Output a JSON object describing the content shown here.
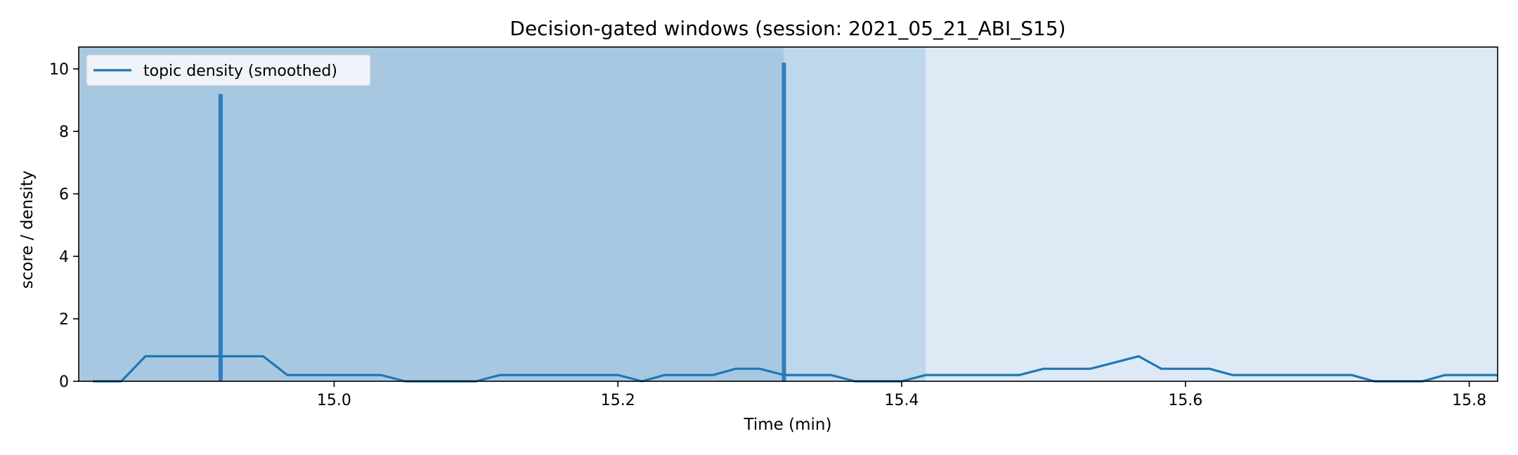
{
  "chart_data": {
    "type": "line",
    "title": "Decision-gated windows (session: 2021_05_21_ABI_S15)",
    "xlabel": "Time (min)",
    "ylabel": "score / density",
    "xlim": [
      14.82,
      15.82
    ],
    "ylim": [
      0,
      10.7
    ],
    "xticks": [
      15.0,
      15.2,
      15.4,
      15.6,
      15.8
    ],
    "xtick_labels": [
      "15.0",
      "15.2",
      "15.4",
      "15.6",
      "15.8"
    ],
    "yticks": [
      0,
      2,
      4,
      6,
      8,
      10
    ],
    "ytick_labels": [
      "0",
      "2",
      "4",
      "6",
      "8",
      "10"
    ],
    "grid": false,
    "legend_position": "top-left",
    "colors": {
      "line": "#1f77b4",
      "spike": "#2e7fbf",
      "window_dark": "#a8c8e2",
      "window_mid": "#bed7eb",
      "window_light": "#dde9f4"
    },
    "windows": [
      {
        "x0": 14.82,
        "x1": 15.317,
        "shade": "dark"
      },
      {
        "x0": 15.317,
        "x1": 15.417,
        "shade": "mid"
      },
      {
        "x0": 15.417,
        "x1": 15.82,
        "shade": "light"
      }
    ],
    "spikes": [
      {
        "x": 14.92,
        "y": 9.2
      },
      {
        "x": 15.317,
        "y": 10.2
      }
    ],
    "series": [
      {
        "name": "topic density (smoothed)",
        "x": [
          14.83,
          14.85,
          14.867,
          14.883,
          14.9,
          14.917,
          14.933,
          14.95,
          14.967,
          14.983,
          15.0,
          15.017,
          15.033,
          15.05,
          15.067,
          15.083,
          15.1,
          15.117,
          15.133,
          15.15,
          15.167,
          15.183,
          15.2,
          15.217,
          15.233,
          15.25,
          15.267,
          15.283,
          15.3,
          15.317,
          15.333,
          15.35,
          15.367,
          15.383,
          15.4,
          15.417,
          15.433,
          15.45,
          15.467,
          15.483,
          15.5,
          15.517,
          15.533,
          15.55,
          15.567,
          15.583,
          15.6,
          15.617,
          15.633,
          15.65,
          15.667,
          15.683,
          15.7,
          15.717,
          15.733,
          15.75,
          15.767,
          15.783,
          15.8,
          15.82
        ],
        "y": [
          0,
          0,
          0.8,
          0.8,
          0.8,
          0.8,
          0.8,
          0.8,
          0.2,
          0.2,
          0.2,
          0.2,
          0.2,
          0,
          0,
          0,
          0,
          0.2,
          0.2,
          0.2,
          0.2,
          0.2,
          0.2,
          0,
          0.2,
          0.2,
          0.2,
          0.4,
          0.4,
          0.2,
          0.2,
          0.2,
          0,
          0,
          0,
          0.2,
          0.2,
          0.2,
          0.2,
          0.2,
          0.4,
          0.4,
          0.4,
          0.6,
          0.8,
          0.4,
          0.4,
          0.4,
          0.2,
          0.2,
          0.2,
          0.2,
          0.2,
          0.2,
          0,
          0,
          0,
          0.2,
          0.2,
          0.2
        ]
      }
    ]
  }
}
